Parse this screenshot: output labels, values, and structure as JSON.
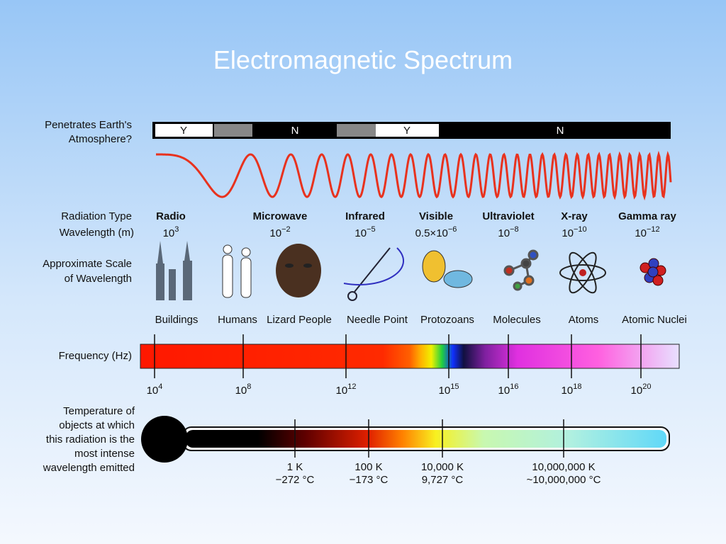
{
  "header": {
    "title": "Electromagnetic Spectrum"
  },
  "atmosphere": {
    "label": [
      "Penetrates Earth's",
      "Atmosphere?"
    ],
    "segments": [
      "Y",
      "N",
      "Y",
      "N"
    ]
  },
  "radiation": {
    "type_label": "Radiation Type",
    "wavelength_label": "Wavelength (m)",
    "columns": [
      {
        "type": "Radio",
        "base": "10",
        "exp": "3"
      },
      {
        "type": "Microwave",
        "base": "10",
        "exp": "−2"
      },
      {
        "type": "Infrared",
        "base": "10",
        "exp": "−5"
      },
      {
        "type": "Visible",
        "base": "0.5×10",
        "exp": "−6"
      },
      {
        "type": "Ultraviolet",
        "base": "10",
        "exp": "−8"
      },
      {
        "type": "X-ray",
        "base": "10",
        "exp": "−10"
      },
      {
        "type": "Gamma ray",
        "base": "10",
        "exp": "−12"
      }
    ]
  },
  "scale": {
    "label": [
      "Approximate Scale",
      "of Wavelength"
    ],
    "items": [
      "Buildings",
      "Humans",
      "Lizard People",
      "Needle Point",
      "Protozoans",
      "Molecules",
      "Atoms",
      "Atomic Nuclei"
    ]
  },
  "frequency": {
    "label": "Frequency (Hz)",
    "ticks": [
      {
        "base": "10",
        "exp": "4"
      },
      {
        "base": "10",
        "exp": "8"
      },
      {
        "base": "10",
        "exp": "12"
      },
      {
        "base": "10",
        "exp": "15"
      },
      {
        "base": "10",
        "exp": "16"
      },
      {
        "base": "10",
        "exp": "18"
      },
      {
        "base": "10",
        "exp": "20"
      }
    ]
  },
  "temperature": {
    "label": [
      "Temperature of",
      "objects at which",
      "this radiation is the",
      "most intense",
      "wavelength emitted"
    ],
    "marks": [
      {
        "kelvin": "1 K",
        "celsius": "−272 °C"
      },
      {
        "kelvin": "100 K",
        "celsius": "−173 °C"
      },
      {
        "kelvin": "10,000 K",
        "celsius": "9,727 °C"
      },
      {
        "kelvin": "10,000,000 K",
        "celsius": "~10,000,000 °C"
      }
    ]
  }
}
